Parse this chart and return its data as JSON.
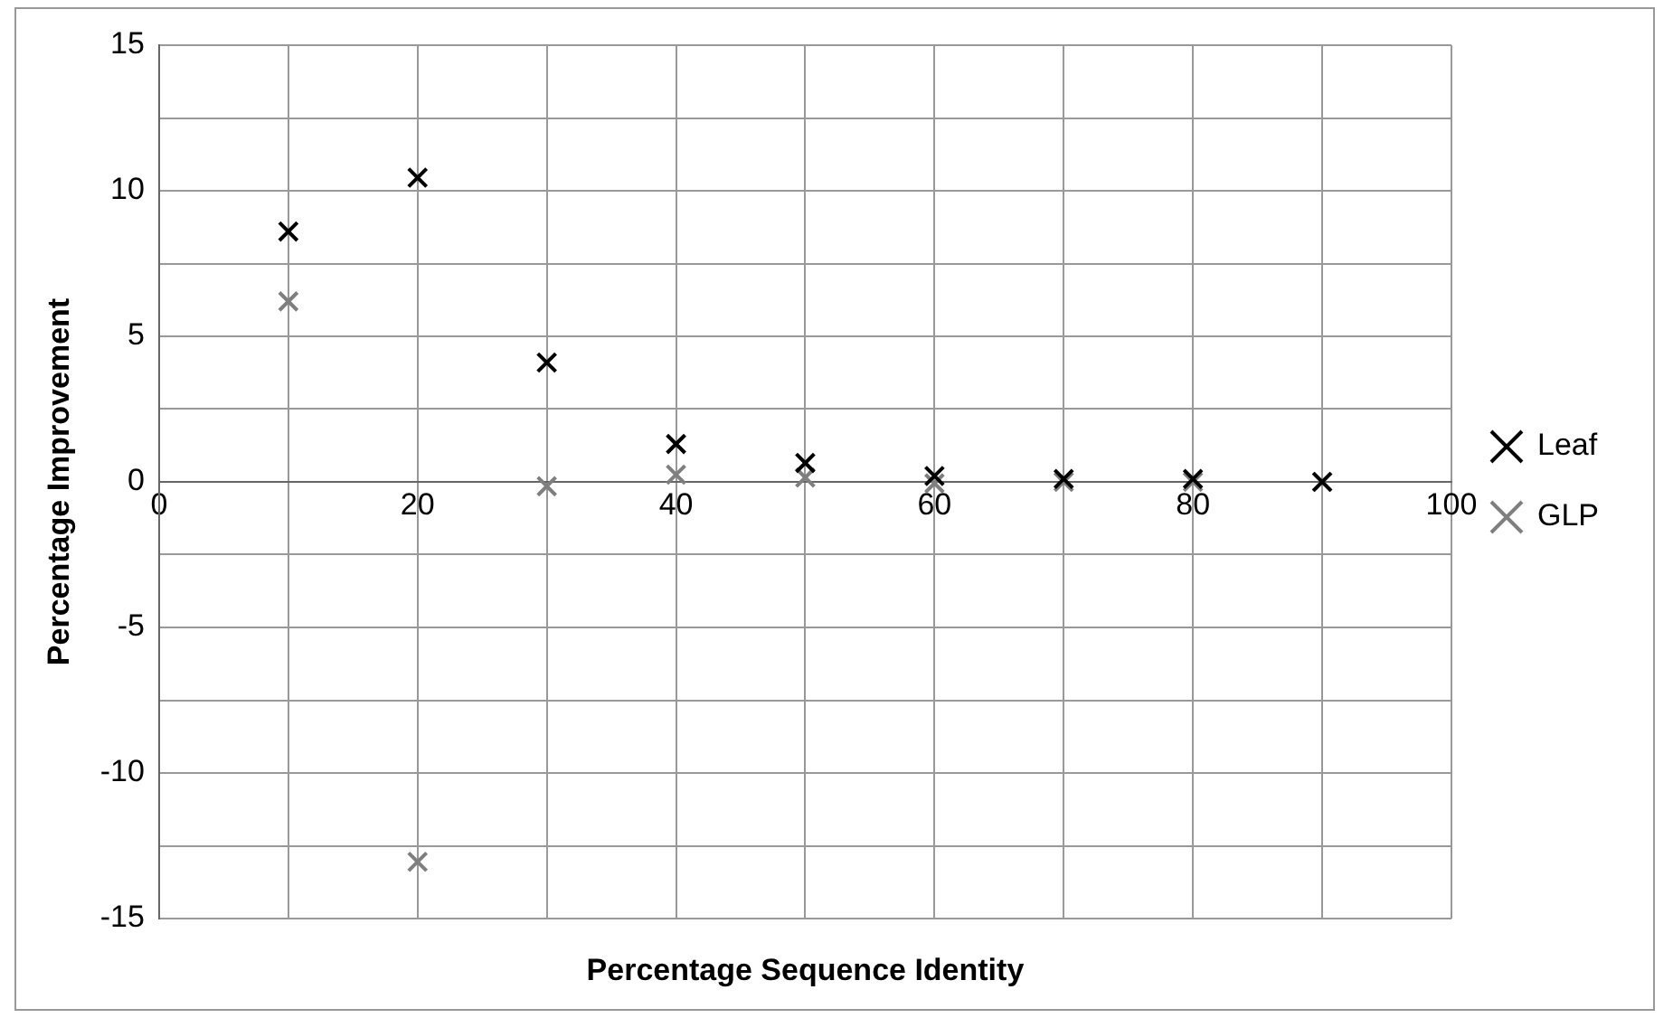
{
  "chart_data": {
    "type": "scatter",
    "xlabel": "Percentage Sequence Identity",
    "ylabel": "Percentage Improvement",
    "x": [
      10,
      20,
      30,
      40,
      50,
      60,
      70,
      80,
      90
    ],
    "series": [
      {
        "name": "Leaf",
        "color": "#000000",
        "values": [
          8.6,
          10.45,
          4.1,
          1.3,
          0.65,
          0.2,
          0.1,
          0.1,
          0
        ]
      },
      {
        "name": "GLP",
        "color": "#7f7f7f",
        "values": [
          6.2,
          -13.05,
          -0.15,
          0.25,
          0.15,
          -0.05,
          0,
          0,
          0
        ]
      }
    ],
    "xlim": [
      0,
      100
    ],
    "xticks": [
      0,
      {
        "value": 10,
        "label": null
      },
      20,
      {
        "value": 30,
        "label": null
      },
      40,
      {
        "value": 50,
        "label": null
      },
      60,
      {
        "value": 70,
        "label": null
      },
      80,
      {
        "value": 90,
        "label": null
      },
      100
    ],
    "ylim": [
      -15,
      15
    ],
    "yticks": [
      -15,
      {
        "value": -12.5,
        "label": null
      },
      -10,
      {
        "value": -7.5,
        "label": null
      },
      -5,
      {
        "value": -2.5,
        "label": null
      },
      0,
      {
        "value": 2.5,
        "label": null
      },
      5,
      {
        "value": 7.5,
        "label": null
      },
      10,
      {
        "value": 12.5,
        "label": null
      },
      15
    ],
    "grid": true,
    "legend": "right",
    "marker": "cross"
  }
}
